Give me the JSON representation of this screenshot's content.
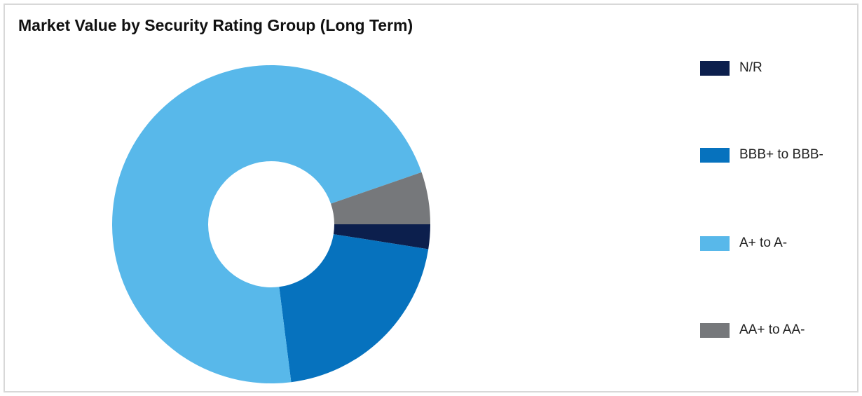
{
  "chart_data": {
    "type": "donut",
    "title": "Market Value by Security Rating Group (Long Term)",
    "categories": [
      "N/R",
      "BBB+ to BBB-",
      "A+ to A-",
      "AA+ to AA-"
    ],
    "values": [
      2.5,
      20.5,
      71.7,
      5.3
    ],
    "colors": [
      "#0c1f4d",
      "#0672be",
      "#58b8ea",
      "#76787b"
    ]
  }
}
